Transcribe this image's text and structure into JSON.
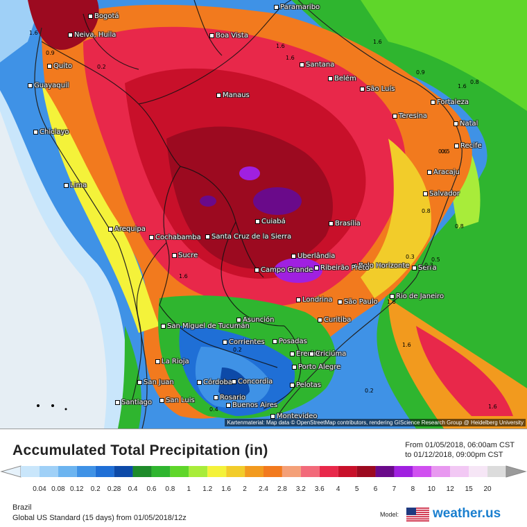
{
  "map": {
    "attribution": "Kartenmaterial: Map data © OpenStreetMap contributors, rendering GIScience Research Group @ Heidelberg University",
    "cities": [
      {
        "name": "Bogotá"
      },
      {
        "name": "Neiva, Huila"
      },
      {
        "name": "Quito"
      },
      {
        "name": "Guayaquil"
      },
      {
        "name": "Chiclayo"
      },
      {
        "name": "Lima"
      },
      {
        "name": "Arequipa"
      },
      {
        "name": "Cochabamba"
      },
      {
        "name": "Sucre"
      },
      {
        "name": "Santa Cruz de la Sierra"
      },
      {
        "name": "Cuiabá"
      },
      {
        "name": "Manaus"
      },
      {
        "name": "Boa Vista"
      },
      {
        "name": "Paramaribo"
      },
      {
        "name": "Santana"
      },
      {
        "name": "Belém"
      },
      {
        "name": "São Luís"
      },
      {
        "name": "Fortaleza"
      },
      {
        "name": "Teresina"
      },
      {
        "name": "Natal"
      },
      {
        "name": "Recife"
      },
      {
        "name": "Aracaju"
      },
      {
        "name": "Salvador"
      },
      {
        "name": "Brasília"
      },
      {
        "name": "Uberlândia"
      },
      {
        "name": "Belo Horizonte"
      },
      {
        "name": "Serra"
      },
      {
        "name": "Campo Grande"
      },
      {
        "name": "Ribeirão Preto"
      },
      {
        "name": "Rio de Janeiro"
      },
      {
        "name": "Londrina"
      },
      {
        "name": "São Paulo"
      },
      {
        "name": "Curitiba"
      },
      {
        "name": "Asunción"
      },
      {
        "name": "San Miguel de Tucumán"
      },
      {
        "name": "Corrientes"
      },
      {
        "name": "Posadas"
      },
      {
        "name": "Erechim"
      },
      {
        "name": "Criciúma"
      },
      {
        "name": "Porto Alegre"
      },
      {
        "name": "La Rioja"
      },
      {
        "name": "San Juan"
      },
      {
        "name": "Córdoba"
      },
      {
        "name": "Concordia"
      },
      {
        "name": "Pelotas"
      },
      {
        "name": "Rosario"
      },
      {
        "name": "Santiago"
      },
      {
        "name": "San Luis"
      },
      {
        "name": "Buenos Aires"
      },
      {
        "name": "Montevideo"
      }
    ],
    "values": [
      "1.6",
      "0.9",
      "0.2",
      "1.6",
      "0.9",
      "1.6",
      "1.6",
      "0.8",
      "0.6",
      "0.5",
      "0.8",
      "1.6",
      "0.2",
      "0.3",
      "0.5",
      "0.8",
      "1.6",
      "1.6",
      "0.3",
      "0.2",
      "0.4",
      "1.6",
      "1.6"
    ]
  },
  "header": {
    "title": "Accumulated Total Precipitation (in)",
    "from": "From 01/05/2018, 06:00am CST",
    "to": "to 01/12/2018, 09:00pm CST"
  },
  "scale": {
    "ticks": [
      "0.04",
      "0.08",
      "0.12",
      "0.2",
      "0.28",
      "0.4",
      "0.6",
      "0.8",
      "1",
      "1.2",
      "1.6",
      "2",
      "2.4",
      "2.8",
      "3.2",
      "3.6",
      "4",
      "5",
      "6",
      "7",
      "8",
      "10",
      "12",
      "15",
      "20"
    ],
    "colors": [
      "#c9e6fb",
      "#9fd0f7",
      "#6cb4f0",
      "#3f92e6",
      "#1f6fd6",
      "#0d4aa8",
      "#1e8b2a",
      "#2fb52f",
      "#5fd62a",
      "#a8ec3a",
      "#f4f23a",
      "#f2cc2a",
      "#f29a1e",
      "#f27a1e",
      "#f4a078",
      "#f26a7a",
      "#e8284a",
      "#c8102a",
      "#9c0a20",
      "#6a0a8a",
      "#a020e0",
      "#d050f0",
      "#e898f0",
      "#f2c8f4",
      "#f6e6f6",
      "#dcdcdc"
    ]
  },
  "footer": {
    "region": "Brazil",
    "model": "Global US Standard (15 days) from 01/05/2018/12z",
    "model_label": "Model:",
    "brand": "weather.us"
  }
}
